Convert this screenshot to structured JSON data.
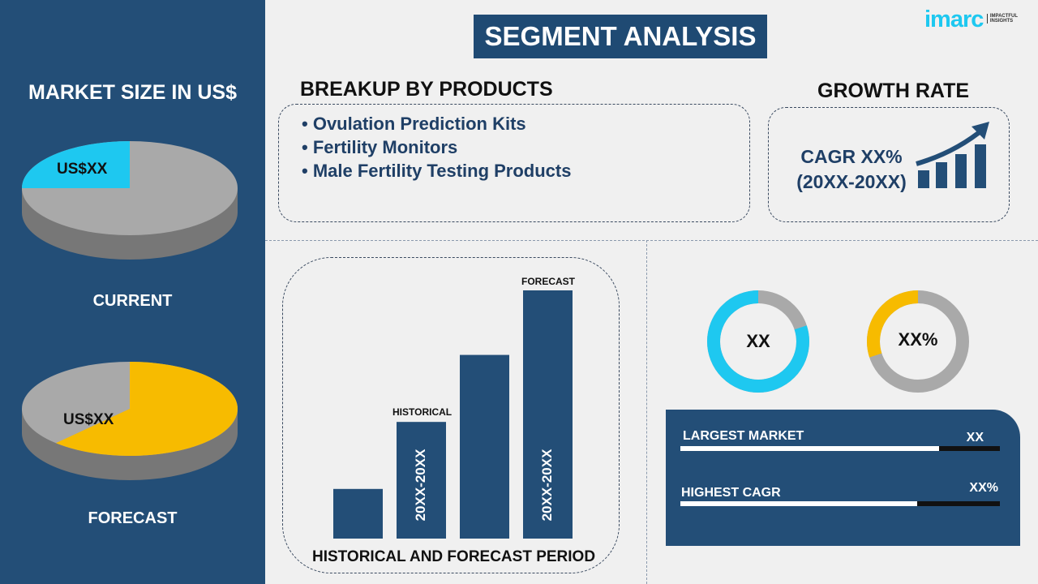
{
  "header": {
    "title": "SEGMENT ANALYSIS",
    "logo": {
      "text": "imarc",
      "tagline": "IMPACTFUL INSIGHTS"
    }
  },
  "left": {
    "title": "MARKET SIZE IN US$",
    "current": {
      "label": "CURRENT",
      "value": "US$XX",
      "share": 0.25,
      "colors": [
        "#1ec8f0",
        "#a9a9a9"
      ]
    },
    "forecast": {
      "label": "FORECAST",
      "value": "US$XX",
      "share": 0.62,
      "colors": [
        "#f7bb00",
        "#a9a9a9"
      ]
    }
  },
  "products": {
    "title": "BREAKUP BY PRODUCTS",
    "items": [
      "Ovulation Prediction Kits",
      "Fertility Monitors",
      "Male Fertility Testing Products"
    ]
  },
  "growth": {
    "title": "GROWTH RATE",
    "cagr": "CAGR XX%",
    "period": "(20XX-20XX)"
  },
  "period_chart": {
    "title": "HISTORICAL AND FORECAST PERIOD",
    "relative_values": [
      20,
      47,
      74,
      100
    ],
    "historical_label": "HISTORICAL",
    "forecast_label": "FORECAST",
    "historical_range": "20XX-20XX",
    "forecast_range": "20XX-20XX",
    "bar_color": "#234e77"
  },
  "donuts": [
    {
      "value": "XX",
      "share": 0.8,
      "color": "#1ec8f0"
    },
    {
      "value": "XX%",
      "share": 0.3,
      "color": "#f7bb00"
    }
  ],
  "stats": [
    {
      "label": "LARGEST MARKET",
      "value": "XX",
      "fill": 0.81
    },
    {
      "label": "HIGHEST CAGR",
      "value": "XX%",
      "fill": 0.74
    }
  ]
}
